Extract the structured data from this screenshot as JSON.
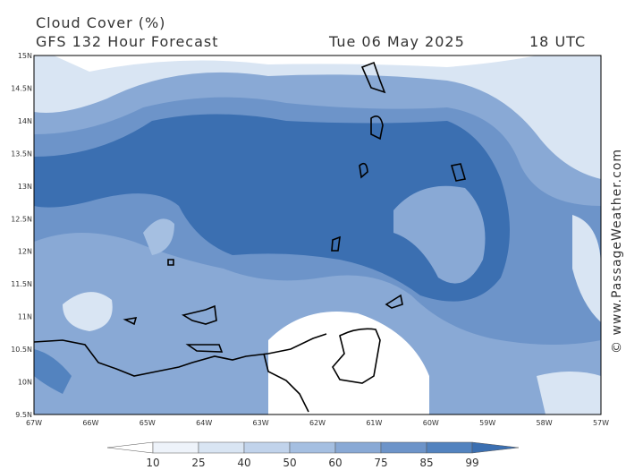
{
  "header": {
    "title": "Cloud Cover (%)",
    "subtitle": "GFS 132 Hour Forecast",
    "date": "Tue 06 May 2025",
    "time": "18 UTC"
  },
  "map": {
    "lat_labels": [
      "15N",
      "14.5N",
      "14N",
      "13.5N",
      "13N",
      "12.5N",
      "12N",
      "11.5N",
      "11N",
      "10.5N",
      "10N",
      "9.5N"
    ],
    "lon_labels": [
      "67W",
      "66W",
      "65W",
      "64W",
      "63W",
      "62W",
      "61W",
      "60W",
      "59W",
      "58W",
      "57W"
    ]
  },
  "legend": {
    "levels": [
      10,
      25,
      40,
      50,
      60,
      75,
      85,
      99
    ],
    "colors": [
      "#ffffff",
      "#eef3fa",
      "#d9e5f3",
      "#c1d3eb",
      "#a5bfe1",
      "#89a9d5",
      "#6d94c9",
      "#5383bf",
      "#3b6fb1"
    ]
  },
  "watermark": "© www.PassageWeather.com"
}
